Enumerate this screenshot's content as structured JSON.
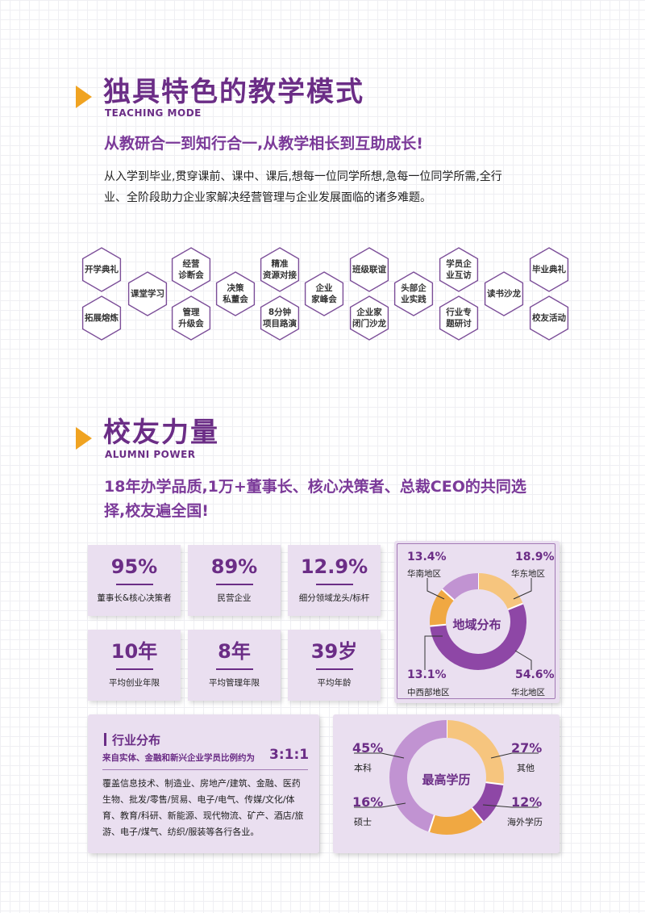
{
  "teaching": {
    "title": "独具特色的教学模式",
    "subtitle_en": "TEACHING MODE",
    "slogan": "从教研合一到知行合一,从教学相长到互助成长!",
    "paragraph_line1": "从入学到毕业,贯穿课前、课中、课后,想每一位同学所想,急每一位同学所需,全行",
    "paragraph_line2": "业、全阶段助力企业家解决经营管理与企业发展面临的诸多难题。",
    "hexagons": [
      "开学典礼",
      "拓展熔炼",
      "课堂学习",
      "经营\n诊断会",
      "管理\n升级会",
      "决策\n私董会",
      "精准\n资源对接",
      "8分钟\n项目路演",
      "企业\n家峰会",
      "班级联谊",
      "企业家\n闭门沙龙",
      "头部企\n业实践",
      "学员企\n业互访",
      "行业专\n题研讨",
      "读书沙龙",
      "毕业典礼",
      "校友活动"
    ]
  },
  "alumni": {
    "title": "校友力量",
    "subtitle_en": "ALUMNI POWER",
    "slogan_line1": "18年办学品质,1万+董事长、核心决策者、总裁CEO的共同选",
    "slogan_line2": "择,校友遍全国!",
    "stats": [
      {
        "value": "95%",
        "label": "董事长&核心决策者"
      },
      {
        "value": "89%",
        "label": "民营企业"
      },
      {
        "value": "12.9%",
        "label": "细分领域龙头/标杆"
      },
      {
        "value": "10年",
        "label": "平均创业年限"
      },
      {
        "value": "8年",
        "label": "平均管理年限"
      },
      {
        "value": "39岁",
        "label": "平均年龄"
      }
    ],
    "industry": {
      "title": "行业分布",
      "ratio_text": "来自实体、金融和新兴企业学员比例约为",
      "ratio_value": "3:1:1",
      "desc_lines": [
        "覆盖信息技术、制造业、房地产/建筑、金融、医药",
        "生物、批发/零售/贸易、电子/电气、传媒/文化/体",
        "育、教育/科研、新能源、现代物流、矿产、酒店/旅",
        "游、电子/煤气、纺织/服装等各行各业。"
      ]
    }
  },
  "chart_data": [
    {
      "type": "pie",
      "title": "地域分布",
      "slices": [
        {
          "label": "华东地区",
          "value": 18.9,
          "display": "18.9%",
          "color": "#f6c57e"
        },
        {
          "label": "华北地区",
          "value": 54.6,
          "display": "54.6%",
          "color": "#8e47a6"
        },
        {
          "label": "中西部地区",
          "value": 13.1,
          "display": "13.1%",
          "color": "#f0a842"
        },
        {
          "label": "华南地区",
          "value": 13.4,
          "display": "13.4%",
          "color": "#c193d2"
        }
      ]
    },
    {
      "type": "pie",
      "title": "最高学历",
      "slices": [
        {
          "label": "其他",
          "value": 27,
          "display": "27%",
          "color": "#f6c57e"
        },
        {
          "label": "海外学历",
          "value": 12,
          "display": "12%",
          "color": "#8e47a6"
        },
        {
          "label": "硕士",
          "value": 16,
          "display": "16%",
          "color": "#f0a842"
        },
        {
          "label": "本科",
          "value": 45,
          "display": "45%",
          "color": "#c193d2"
        }
      ]
    }
  ]
}
